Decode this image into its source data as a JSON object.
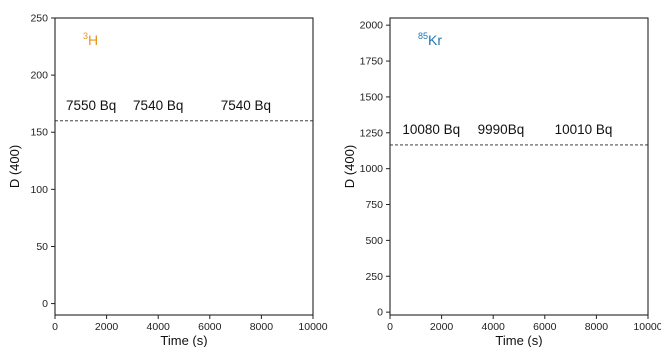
{
  "chart_data": [
    {
      "type": "line",
      "isotope": {
        "mass": "3",
        "symbol": "H",
        "color": "#e8961c"
      },
      "xlabel": "Time (s)",
      "ylabel": "D (400)",
      "xlim": [
        0,
        10000
      ],
      "ylim": [
        -10,
        250
      ],
      "xticks": [
        0,
        2000,
        4000,
        6000,
        8000,
        10000
      ],
      "yticks": [
        0,
        50,
        100,
        150,
        200,
        250
      ],
      "threshold": {
        "y": 160,
        "style": "dashed"
      },
      "annotations": [
        {
          "text": "7550 Bq",
          "x": 1400
        },
        {
          "text": "7540 Bq",
          "x": 4000
        },
        {
          "text": "7540 Bq",
          "x": 7400
        }
      ],
      "grid": false
    },
    {
      "type": "line",
      "isotope": {
        "mass": "85",
        "symbol": "Kr",
        "color": "#1f77b4"
      },
      "xlabel": "Time (s)",
      "ylabel": "D (400)",
      "xlim": [
        0,
        10000
      ],
      "ylim": [
        -20,
        2050
      ],
      "xticks": [
        0,
        2000,
        4000,
        6000,
        8000,
        10000
      ],
      "yticks": [
        0,
        250,
        500,
        750,
        1000,
        1250,
        1500,
        1750,
        2000
      ],
      "threshold": {
        "y": 1165,
        "style": "dashed"
      },
      "annotations": [
        {
          "text": "10080 Bq",
          "x": 1600
        },
        {
          "text": "9990Bq",
          "x": 4300
        },
        {
          "text": "10010 Bq",
          "x": 7500
        }
      ],
      "grid": false
    }
  ]
}
